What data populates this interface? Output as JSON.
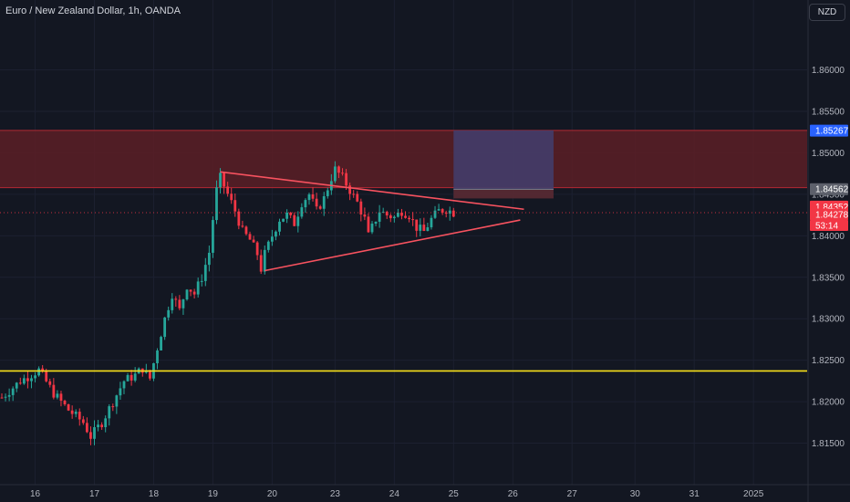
{
  "header": {
    "title": "Euro / New Zealand Dollar, 1h, OANDA",
    "currency": "NZD"
  },
  "chart_data": {
    "type": "candlestick",
    "symbol": "EURNZD",
    "timeframe": "1h",
    "ylim": [
      1.81,
      1.866
    ],
    "y_ticks": [
      "1.81500",
      "1.82000",
      "1.82500",
      "1.83000",
      "1.83500",
      "1.84000",
      "1.84500",
      "1.85000",
      "1.85500",
      "1.86000"
    ],
    "x_ticks": [
      "16",
      "17",
      "18",
      "19",
      "20",
      "23",
      "24",
      "25",
      "26",
      "27",
      "30",
      "31",
      "2025"
    ],
    "close_path": [
      [
        0,
        1.8205
      ],
      [
        5,
        1.8225
      ],
      [
        10,
        1.8238
      ],
      [
        14,
        1.821
      ],
      [
        18,
        1.819
      ],
      [
        22,
        1.8175
      ],
      [
        24,
        1.8158
      ],
      [
        27,
        1.8175
      ],
      [
        30,
        1.82
      ],
      [
        33,
        1.8225
      ],
      [
        36,
        1.8232
      ],
      [
        38,
        1.824
      ],
      [
        40,
        1.8228
      ],
      [
        42,
        1.8265
      ],
      [
        44,
        1.83
      ],
      [
        46,
        1.833
      ],
      [
        48,
        1.831
      ],
      [
        50,
        1.834
      ],
      [
        52,
        1.833
      ],
      [
        54,
        1.835
      ],
      [
        56,
        1.838
      ],
      [
        57,
        1.842
      ],
      [
        58,
        1.8455
      ],
      [
        59,
        1.847
      ],
      [
        61,
        1.845
      ],
      [
        63,
        1.843
      ],
      [
        65,
        1.8405
      ],
      [
        67,
        1.8395
      ],
      [
        69,
        1.8378
      ],
      [
        70,
        1.836
      ],
      [
        71,
        1.8378
      ],
      [
        73,
        1.84
      ],
      [
        75,
        1.842
      ],
      [
        77,
        1.8425
      ],
      [
        79,
        1.8415
      ],
      [
        81,
        1.844
      ],
      [
        83,
        1.845
      ],
      [
        85,
        1.843
      ],
      [
        87,
        1.8445
      ],
      [
        89,
        1.847
      ],
      [
        90,
        1.848
      ],
      [
        92,
        1.847
      ],
      [
        94,
        1.8455
      ],
      [
        96,
        1.844
      ],
      [
        98,
        1.842
      ],
      [
        99,
        1.84
      ],
      [
        100,
        1.841
      ],
      [
        102,
        1.843
      ],
      [
        104,
        1.8425
      ],
      [
        106,
        1.8422
      ],
      [
        108,
        1.843
      ],
      [
        110,
        1.8425
      ],
      [
        112,
        1.841
      ],
      [
        114,
        1.8405
      ],
      [
        116,
        1.842
      ],
      [
        118,
        1.843
      ],
      [
        120,
        1.8432
      ],
      [
        122,
        1.8428
      ]
    ],
    "resistance_zone": [
      1.8458,
      1.8527
    ],
    "support_line": 1.8237,
    "triangle_upper": [
      [
        59,
        1.8477
      ],
      [
        141,
        1.8432
      ]
    ],
    "triangle_lower": [
      [
        71,
        1.8358
      ],
      [
        140,
        1.8419
      ]
    ],
    "position_box": {
      "x": [
        122,
        149
      ],
      "target": 1.8527,
      "entry": 1.8456,
      "stop": 1.8445
    },
    "price_labels": [
      {
        "text": "1.85267",
        "value": 1.85267,
        "color": "#2962ff"
      },
      {
        "text": "1.84562",
        "value": 1.84562,
        "color": "#5d606b"
      },
      {
        "text": "1.84352",
        "value": 1.84352,
        "color": "#f23645"
      },
      {
        "text": "1.84278",
        "value": 1.84278,
        "color": "#f23645"
      }
    ],
    "countdown": "53:14"
  },
  "colors": {
    "up": "#26a69a",
    "down": "#f23645",
    "zone_fill": "#5c1f26",
    "zone_edge": "#b22833",
    "support": "#f7e01a",
    "triangle": "#f7525f",
    "target_fill": "#433d6a",
    "stop_fill": "#5a2a33"
  }
}
